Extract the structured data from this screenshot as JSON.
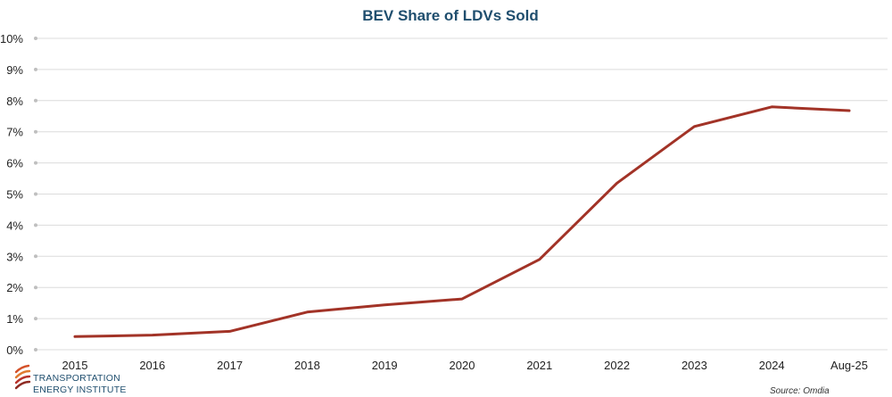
{
  "chart_data": {
    "type": "line",
    "title": "BEV Share of LDVs Sold",
    "xlabel": "",
    "ylabel": "",
    "categories": [
      "2015",
      "2016",
      "2017",
      "2018",
      "2019",
      "2020",
      "2021",
      "2022",
      "2023",
      "2024",
      "Aug-25"
    ],
    "series": [
      {
        "values": [
          0.42,
          0.47,
          0.59,
          1.21,
          1.44,
          1.63,
          2.9,
          5.35,
          7.17,
          7.8,
          7.68
        ]
      }
    ],
    "ylim": [
      0,
      10
    ],
    "yticks": [
      "0%",
      "1%",
      "2%",
      "3%",
      "4%",
      "5%",
      "6%",
      "7%",
      "8%",
      "9%",
      "10%"
    ],
    "grid": true,
    "legend": "none",
    "line_color": "#a23327",
    "source": "Source:  Omdia"
  },
  "logo": {
    "line1": "TRANSPORTATION",
    "line2": "ENERGY INSTITUTE"
  }
}
